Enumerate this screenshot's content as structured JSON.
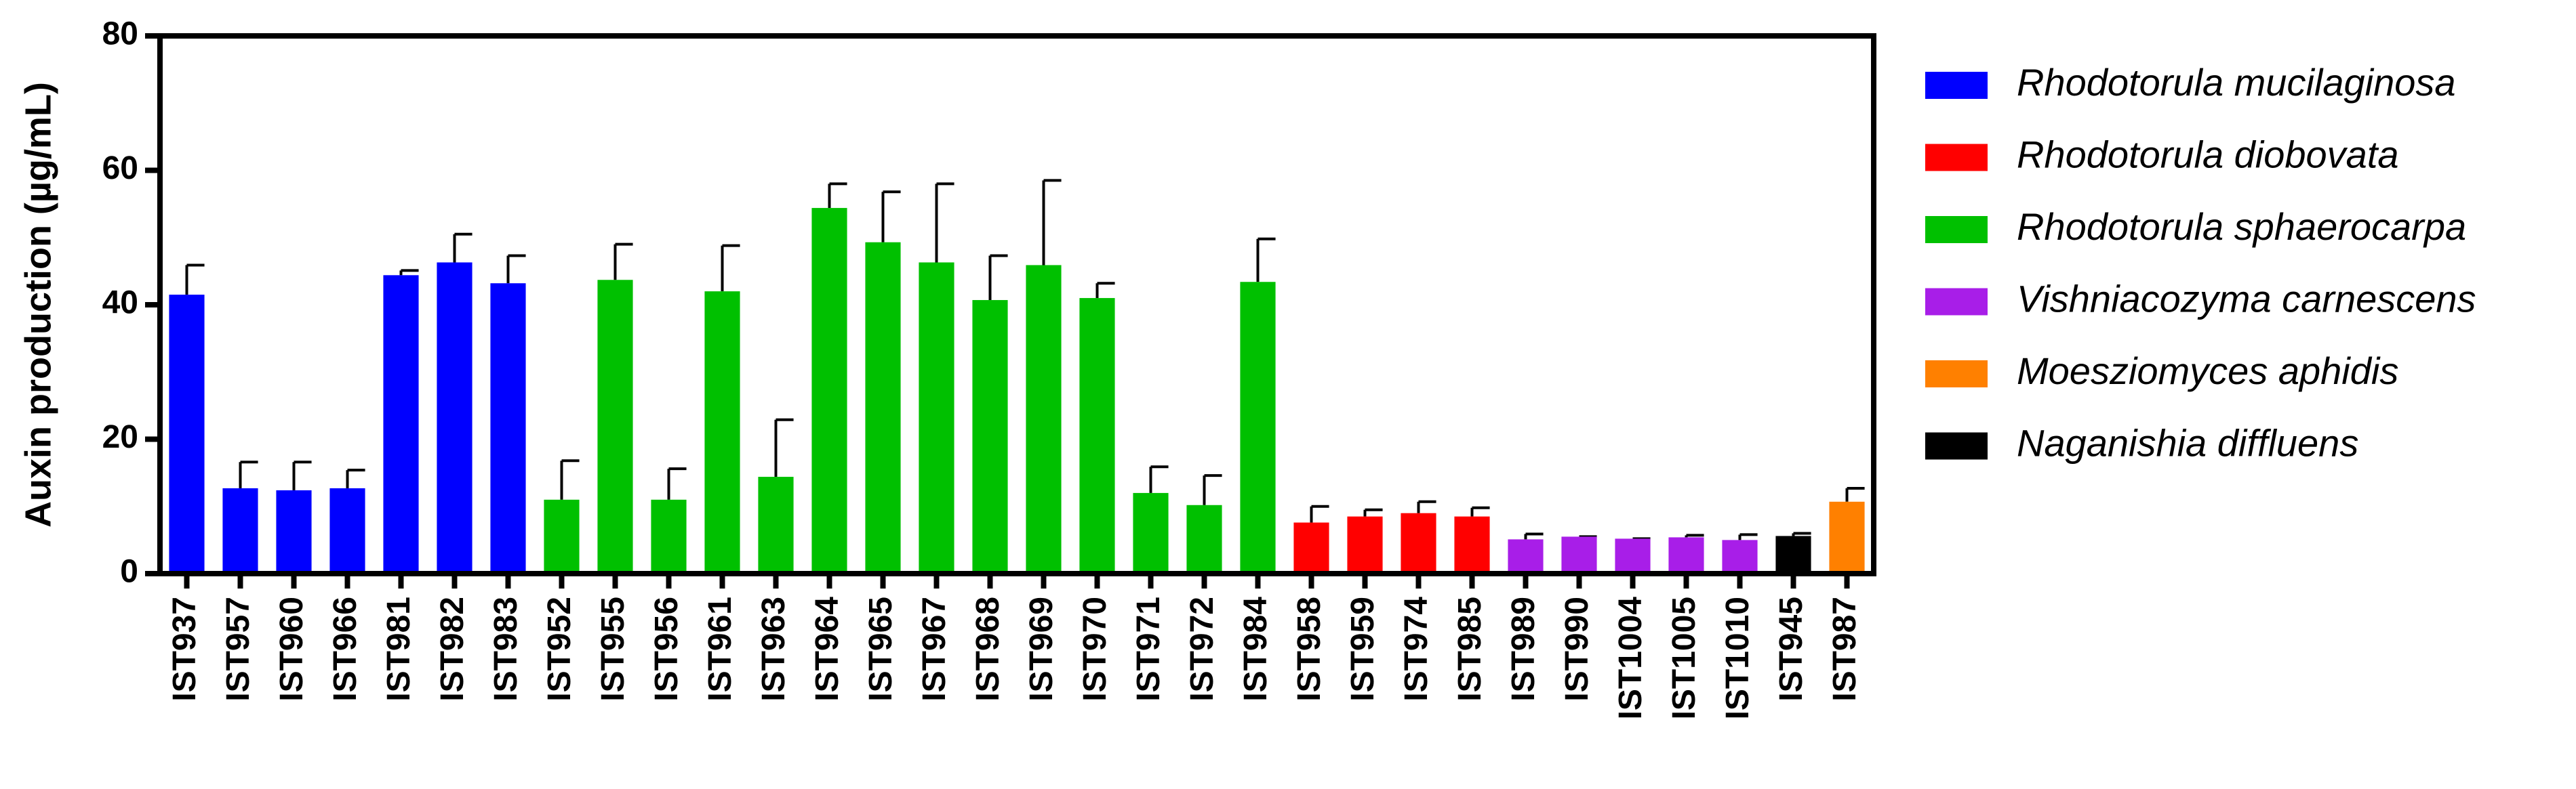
{
  "chart_data": {
    "type": "bar",
    "y_label": "Auxin production (µg/mL)",
    "categories": [
      "IST937",
      "IST957",
      "IST960",
      "IST966",
      "IST981",
      "IST982",
      "IST983",
      "IST952",
      "IST955",
      "IST956",
      "IST961",
      "IST963",
      "IST964",
      "IST965",
      "IST967",
      "IST968",
      "IST969",
      "IST970",
      "IST971",
      "IST972",
      "IST984",
      "IST958",
      "IST959",
      "IST974",
      "IST985",
      "IST989",
      "IST990",
      "IST1004",
      "IST1005",
      "IST1010",
      "IST945",
      "IST987"
    ],
    "series": [
      {
        "name": "Rhodotorula mucilaginosa",
        "color": "#0000ff",
        "values": [
          41.5,
          12.7,
          12.4,
          12.7,
          44.4,
          46.3,
          43.2,
          null,
          null,
          null,
          null,
          null,
          null,
          null,
          null,
          null,
          null,
          null,
          null,
          null,
          null,
          null,
          null,
          null,
          null,
          null,
          null,
          null,
          null,
          null,
          null,
          null
        ],
        "errors": [
          4.4,
          3.9,
          4.2,
          2.7,
          0.7,
          4.2,
          4.1,
          null,
          null,
          null,
          null,
          null,
          null,
          null,
          null,
          null,
          null,
          null,
          null,
          null,
          null,
          null,
          null,
          null,
          null,
          null,
          null,
          null,
          null,
          null,
          null,
          null
        ]
      },
      {
        "name": "Rhodotorula diobovata",
        "color": "#ff0000",
        "values": [
          null,
          null,
          null,
          null,
          null,
          null,
          null,
          null,
          null,
          null,
          null,
          null,
          null,
          null,
          null,
          null,
          null,
          null,
          null,
          null,
          null,
          7.6,
          8.5,
          9.0,
          8.5,
          null,
          null,
          null,
          null,
          null,
          null,
          null
        ],
        "errors": [
          null,
          null,
          null,
          null,
          null,
          null,
          null,
          null,
          null,
          null,
          null,
          null,
          null,
          null,
          null,
          null,
          null,
          null,
          null,
          null,
          null,
          2.4,
          1.0,
          1.7,
          1.3,
          null,
          null,
          null,
          null,
          null,
          null,
          null
        ]
      },
      {
        "name": "Rhodotorula sphaerocarpa",
        "color": "#00c000",
        "values": [
          null,
          null,
          null,
          null,
          null,
          null,
          null,
          11.0,
          43.7,
          11.0,
          42.0,
          14.4,
          54.4,
          49.3,
          46.3,
          40.7,
          45.9,
          41.0,
          12.0,
          10.2,
          43.4,
          null,
          null,
          null,
          null,
          null,
          null,
          null,
          null,
          null,
          null,
          null
        ],
        "errors": [
          null,
          null,
          null,
          null,
          null,
          null,
          null,
          5.8,
          5.3,
          4.6,
          6.8,
          8.5,
          3.6,
          7.5,
          11.7,
          6.6,
          12.6,
          2.2,
          3.9,
          4.4,
          6.4,
          null,
          null,
          null,
          null,
          null,
          null,
          null,
          null,
          null,
          null,
          null
        ]
      },
      {
        "name": "Vishniacozyma carnescens",
        "color": "#a81ee8",
        "values": [
          null,
          null,
          null,
          null,
          null,
          null,
          null,
          null,
          null,
          null,
          null,
          null,
          null,
          null,
          null,
          null,
          null,
          null,
          null,
          null,
          null,
          null,
          null,
          null,
          null,
          5.1,
          5.5,
          5.2,
          5.4,
          5.0,
          null,
          null
        ],
        "errors": [
          null,
          null,
          null,
          null,
          null,
          null,
          null,
          null,
          null,
          null,
          null,
          null,
          null,
          null,
          null,
          null,
          null,
          null,
          null,
          null,
          null,
          null,
          null,
          null,
          null,
          0.8,
          0,
          0,
          0.3,
          0.8,
          null,
          null
        ]
      },
      {
        "name": "Moesziomyces aphidis",
        "color": "#ff8000",
        "values": [
          null,
          null,
          null,
          null,
          null,
          null,
          null,
          null,
          null,
          null,
          null,
          null,
          null,
          null,
          null,
          null,
          null,
          null,
          null,
          null,
          null,
          null,
          null,
          null,
          null,
          null,
          null,
          null,
          null,
          null,
          null,
          10.7
        ],
        "errors": [
          null,
          null,
          null,
          null,
          null,
          null,
          null,
          null,
          null,
          null,
          null,
          null,
          null,
          null,
          null,
          null,
          null,
          null,
          null,
          null,
          null,
          null,
          null,
          null,
          null,
          null,
          null,
          null,
          null,
          null,
          null,
          2.0
        ]
      },
      {
        "name": "Naganishia diffluens",
        "color": "#000000",
        "values": [
          null,
          null,
          null,
          null,
          null,
          null,
          null,
          null,
          null,
          null,
          null,
          null,
          null,
          null,
          null,
          null,
          null,
          null,
          null,
          null,
          null,
          null,
          null,
          null,
          null,
          null,
          null,
          null,
          null,
          null,
          5.6,
          null
        ],
        "errors": [
          null,
          null,
          null,
          null,
          null,
          null,
          null,
          null,
          null,
          null,
          null,
          null,
          null,
          null,
          null,
          null,
          null,
          null,
          null,
          null,
          null,
          null,
          null,
          null,
          null,
          null,
          null,
          null,
          null,
          null,
          0.4,
          null
        ]
      }
    ],
    "ylim": [
      0,
      80
    ],
    "yticks": [
      0,
      20,
      40,
      60,
      80
    ],
    "legend": "right"
  }
}
